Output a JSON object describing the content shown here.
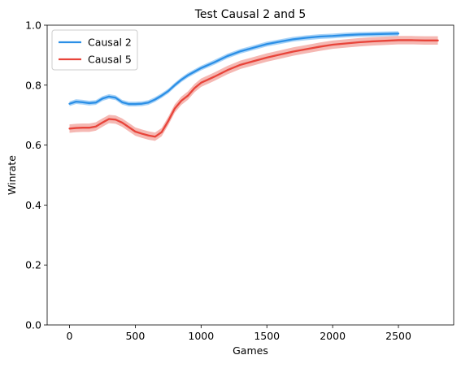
{
  "chart_data": {
    "type": "line",
    "title": "Test Causal 2 and 5",
    "xlabel": "Games",
    "ylabel": "Winrate",
    "xlim": [
      -170,
      2920
    ],
    "ylim": [
      0.0,
      1.0
    ],
    "xticks": [
      0,
      500,
      1000,
      1500,
      2000,
      2500
    ],
    "xtick_labels": [
      "0",
      "500",
      "1000",
      "1500",
      "2000",
      "2500"
    ],
    "yticks": [
      0.0,
      0.2,
      0.4,
      0.6,
      0.8,
      1.0
    ],
    "ytick_labels": [
      "0.0",
      "0.2",
      "0.4",
      "0.6",
      "0.8",
      "1.0"
    ],
    "grid": false,
    "legend_position": "top-left",
    "series": [
      {
        "name": "Causal 2",
        "color": "#2b8fe6",
        "band_color": "#8cc4f4",
        "band": 0.008,
        "x": [
          0,
          50,
          100,
          150,
          200,
          250,
          300,
          350,
          400,
          450,
          500,
          550,
          600,
          650,
          700,
          750,
          800,
          850,
          900,
          950,
          1000,
          1100,
          1200,
          1300,
          1400,
          1500,
          1600,
          1700,
          1800,
          1900,
          2000,
          2100,
          2200,
          2300,
          2400,
          2500
        ],
        "y": [
          0.738,
          0.745,
          0.743,
          0.74,
          0.742,
          0.755,
          0.762,
          0.758,
          0.743,
          0.737,
          0.737,
          0.738,
          0.742,
          0.752,
          0.765,
          0.78,
          0.8,
          0.818,
          0.833,
          0.845,
          0.857,
          0.876,
          0.897,
          0.913,
          0.925,
          0.937,
          0.945,
          0.953,
          0.958,
          0.962,
          0.964,
          0.967,
          0.969,
          0.97,
          0.971,
          0.972
        ]
      },
      {
        "name": "Causal 5",
        "color": "#e8443a",
        "band_color": "#f2a09a",
        "band": 0.014,
        "x": [
          0,
          50,
          100,
          150,
          200,
          250,
          300,
          350,
          400,
          450,
          500,
          550,
          600,
          650,
          700,
          750,
          800,
          850,
          900,
          950,
          1000,
          1100,
          1200,
          1300,
          1400,
          1500,
          1600,
          1700,
          1800,
          1900,
          2000,
          2100,
          2200,
          2300,
          2400,
          2500,
          2600,
          2700,
          2800
        ],
        "y": [
          0.655,
          0.657,
          0.658,
          0.658,
          0.662,
          0.675,
          0.687,
          0.685,
          0.675,
          0.66,
          0.645,
          0.638,
          0.632,
          0.628,
          0.643,
          0.68,
          0.722,
          0.748,
          0.765,
          0.79,
          0.808,
          0.828,
          0.85,
          0.868,
          0.88,
          0.892,
          0.902,
          0.912,
          0.92,
          0.928,
          0.935,
          0.939,
          0.943,
          0.946,
          0.948,
          0.95,
          0.95,
          0.949,
          0.949
        ]
      }
    ]
  }
}
